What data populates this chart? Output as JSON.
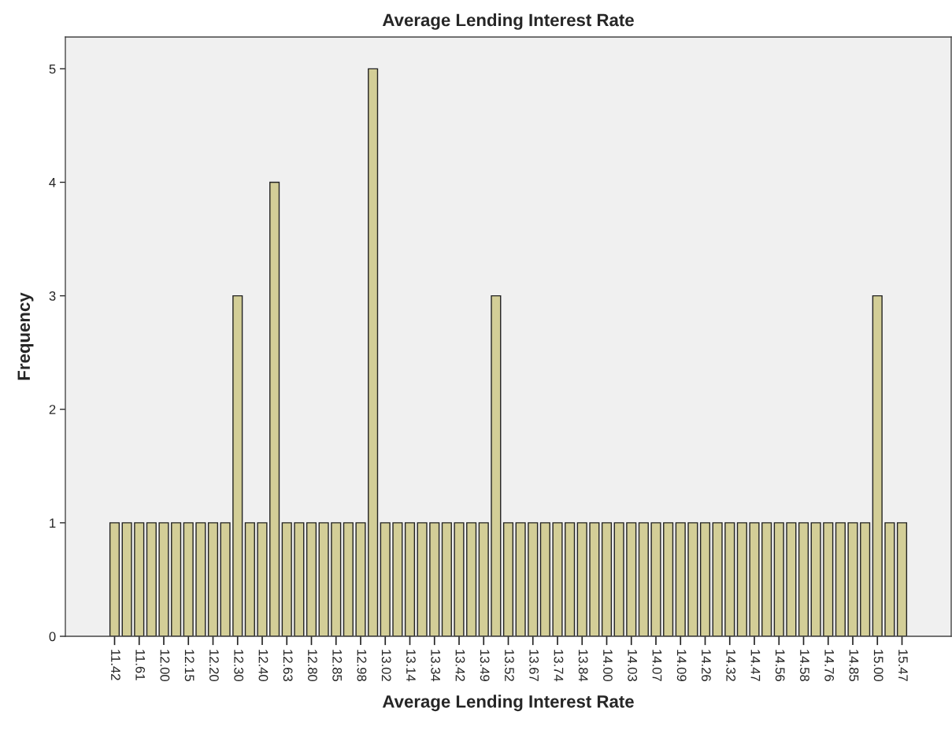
{
  "chart_data": {
    "type": "bar",
    "title": "Average Lending Interest Rate",
    "xlabel": "Average Lending Interest Rate",
    "ylabel": "Frequency",
    "categories": [
      "11.42",
      null,
      "11.61",
      null,
      "12.00",
      null,
      "12.15",
      null,
      "12.20",
      null,
      "12.30",
      null,
      "12.40",
      null,
      "12.63",
      null,
      "12.80",
      null,
      "12.85",
      null,
      "12.98",
      null,
      "13.02",
      null,
      "13.14",
      null,
      "13.34",
      null,
      "13.42",
      null,
      "13.49",
      null,
      "13.52",
      null,
      "13.67",
      null,
      "13.74",
      null,
      "13.84",
      null,
      "14.00",
      null,
      "14.03",
      null,
      "14.07",
      null,
      "14.09",
      null,
      "14.26",
      null,
      "14.32",
      null,
      "14.47",
      null,
      "14.56",
      null,
      "14.58",
      null,
      "14.76",
      null,
      "14.85",
      null,
      "15.00",
      null,
      "15.47"
    ],
    "values": [
      1,
      1,
      1,
      1,
      1,
      1,
      1,
      1,
      1,
      1,
      3,
      1,
      1,
      4,
      1,
      1,
      1,
      1,
      1,
      1,
      1,
      5,
      1,
      1,
      1,
      1,
      1,
      1,
      1,
      1,
      1,
      3,
      1,
      1,
      1,
      1,
      1,
      1,
      1,
      1,
      1,
      1,
      1,
      1,
      1,
      1,
      1,
      1,
      1,
      1,
      1,
      1,
      1,
      1,
      1,
      1,
      1,
      1,
      1,
      1,
      1,
      1,
      3,
      1,
      1
    ],
    "color": "#d3ce97",
    "ylim": [
      0,
      5.28
    ],
    "yticks": [
      0,
      1,
      2,
      3,
      4,
      5
    ],
    "grid": false,
    "legend": false
  }
}
